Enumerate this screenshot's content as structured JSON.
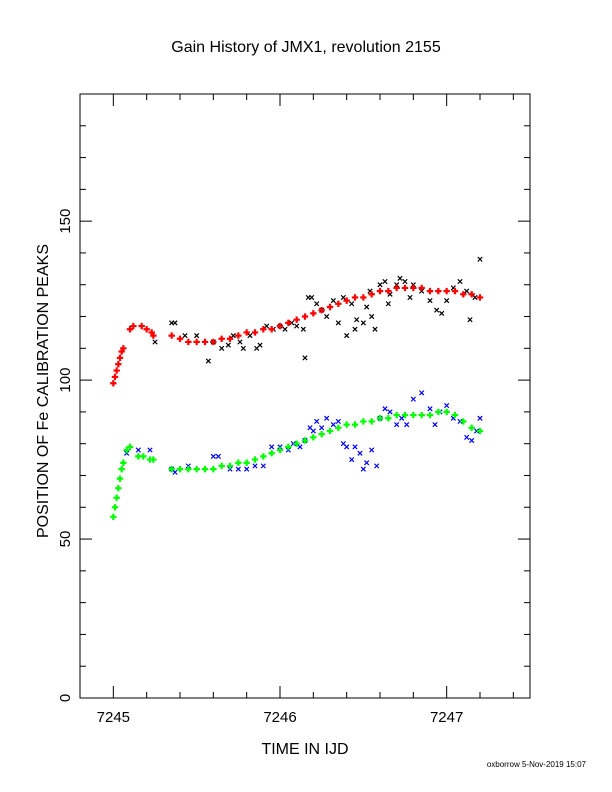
{
  "chart_data": {
    "type": "scatter",
    "title": "Gain History of JMX1, revolution 2155",
    "xlabel": "TIME IN IJD",
    "ylabel": "POSITION OF Fe CALIBRATION PEAKS",
    "xlim": [
      7244.8,
      7247.5
    ],
    "ylim": [
      0,
      190
    ],
    "x_major_ticks": [
      7245,
      7246,
      7247
    ],
    "y_major_ticks": [
      0,
      50,
      100,
      150
    ],
    "grid": false,
    "colors": {
      "upper_raw": "#000000",
      "upper_fit": "#ff0000",
      "lower_raw": "#0000ff",
      "lower_fit": "#00ff00"
    },
    "series": [
      {
        "role": "upper_raw",
        "marker": "x",
        "points": [
          [
            7245.25,
            112
          ],
          [
            7245.35,
            118
          ],
          [
            7245.37,
            118
          ],
          [
            7245.43,
            114
          ],
          [
            7245.5,
            114
          ],
          [
            7245.57,
            106
          ],
          [
            7245.6,
            112
          ],
          [
            7245.65,
            110
          ],
          [
            7245.69,
            111
          ],
          [
            7245.72,
            114
          ],
          [
            7245.76,
            112
          ],
          [
            7245.78,
            110
          ],
          [
            7245.82,
            114
          ],
          [
            7245.86,
            110
          ],
          [
            7245.88,
            111
          ],
          [
            7245.92,
            117
          ],
          [
            7245.96,
            116
          ],
          [
            7246.0,
            117
          ],
          [
            7246.03,
            116
          ],
          [
            7246.07,
            118
          ],
          [
            7246.1,
            117
          ],
          [
            7246.14,
            116
          ],
          [
            7246.17,
            126
          ],
          [
            7246.19,
            126
          ],
          [
            7246.22,
            124
          ],
          [
            7246.25,
            122
          ],
          [
            7246.28,
            120
          ],
          [
            7246.32,
            125
          ],
          [
            7246.35,
            118
          ],
          [
            7246.38,
            126
          ],
          [
            7246.4,
            114
          ],
          [
            7246.43,
            124
          ],
          [
            7246.46,
            119
          ],
          [
            7246.5,
            118
          ],
          [
            7246.52,
            123
          ],
          [
            7246.54,
            128
          ],
          [
            7246.57,
            116
          ],
          [
            7246.6,
            130
          ],
          [
            7246.63,
            131
          ],
          [
            7246.66,
            127
          ],
          [
            7246.7,
            130
          ],
          [
            7246.72,
            132
          ],
          [
            7246.75,
            131
          ],
          [
            7246.8,
            130
          ],
          [
            7246.85,
            128
          ],
          [
            7246.9,
            125
          ],
          [
            7246.94,
            122
          ],
          [
            7246.97,
            121
          ],
          [
            7247.0,
            125
          ],
          [
            7247.04,
            129
          ],
          [
            7247.08,
            131
          ],
          [
            7247.12,
            128
          ],
          [
            7247.14,
            119
          ],
          [
            7247.17,
            126
          ],
          [
            7247.2,
            138
          ],
          [
            7246.15,
            107
          ],
          [
            7246.45,
            116
          ],
          [
            7246.55,
            120
          ],
          [
            7246.65,
            124
          ],
          [
            7246.78,
            126
          ]
        ]
      },
      {
        "role": "upper_fit",
        "marker": "+",
        "points": [
          [
            7245.0,
            99
          ],
          [
            7245.01,
            101
          ],
          [
            7245.02,
            103
          ],
          [
            7245.03,
            105
          ],
          [
            7245.04,
            107
          ],
          [
            7245.05,
            109
          ],
          [
            7245.06,
            110
          ],
          [
            7245.1,
            116
          ],
          [
            7245.12,
            117
          ],
          [
            7245.17,
            117
          ],
          [
            7245.2,
            116
          ],
          [
            7245.23,
            115
          ],
          [
            7245.24,
            114
          ],
          [
            7245.35,
            114
          ],
          [
            7245.4,
            113
          ],
          [
            7245.45,
            112
          ],
          [
            7245.5,
            112
          ],
          [
            7245.55,
            112
          ],
          [
            7245.6,
            112
          ],
          [
            7245.65,
            113
          ],
          [
            7245.7,
            113
          ],
          [
            7245.75,
            114
          ],
          [
            7245.8,
            115
          ],
          [
            7245.85,
            115
          ],
          [
            7245.9,
            116
          ],
          [
            7245.95,
            116
          ],
          [
            7246.0,
            117
          ],
          [
            7246.05,
            118
          ],
          [
            7246.1,
            119
          ],
          [
            7246.15,
            120
          ],
          [
            7246.2,
            121
          ],
          [
            7246.25,
            122
          ],
          [
            7246.3,
            123
          ],
          [
            7246.35,
            124
          ],
          [
            7246.4,
            125
          ],
          [
            7246.45,
            126
          ],
          [
            7246.5,
            126
          ],
          [
            7246.55,
            127
          ],
          [
            7246.6,
            128
          ],
          [
            7246.65,
            128
          ],
          [
            7246.7,
            129
          ],
          [
            7246.75,
            129
          ],
          [
            7246.8,
            129
          ],
          [
            7246.85,
            129
          ],
          [
            7246.9,
            128
          ],
          [
            7246.95,
            128
          ],
          [
            7247.0,
            128
          ],
          [
            7247.05,
            128
          ],
          [
            7247.1,
            127
          ],
          [
            7247.15,
            127
          ],
          [
            7247.2,
            126
          ]
        ]
      },
      {
        "role": "lower_raw",
        "marker": "x",
        "points": [
          [
            7245.08,
            77
          ],
          [
            7245.15,
            78
          ],
          [
            7245.22,
            78
          ],
          [
            7245.35,
            72
          ],
          [
            7245.37,
            71
          ],
          [
            7245.45,
            73
          ],
          [
            7245.6,
            76
          ],
          [
            7245.63,
            76
          ],
          [
            7245.7,
            72
          ],
          [
            7245.75,
            72
          ],
          [
            7245.8,
            72
          ],
          [
            7245.85,
            73
          ],
          [
            7245.9,
            73
          ],
          [
            7245.95,
            79
          ],
          [
            7246.0,
            79
          ],
          [
            7246.05,
            78
          ],
          [
            7246.08,
            80
          ],
          [
            7246.12,
            79
          ],
          [
            7246.15,
            81
          ],
          [
            7246.18,
            85
          ],
          [
            7246.2,
            84
          ],
          [
            7246.22,
            87
          ],
          [
            7246.25,
            85
          ],
          [
            7246.28,
            88
          ],
          [
            7246.32,
            86
          ],
          [
            7246.35,
            87
          ],
          [
            7246.38,
            80
          ],
          [
            7246.4,
            79
          ],
          [
            7246.43,
            75
          ],
          [
            7246.45,
            79
          ],
          [
            7246.48,
            77
          ],
          [
            7246.5,
            72
          ],
          [
            7246.52,
            74
          ],
          [
            7246.55,
            78
          ],
          [
            7246.58,
            73
          ],
          [
            7246.6,
            88
          ],
          [
            7246.63,
            91
          ],
          [
            7246.66,
            90
          ],
          [
            7246.7,
            86
          ],
          [
            7246.73,
            88
          ],
          [
            7246.76,
            86
          ],
          [
            7246.8,
            94
          ],
          [
            7246.85,
            96
          ],
          [
            7246.9,
            91
          ],
          [
            7246.93,
            86
          ],
          [
            7246.96,
            90
          ],
          [
            7247.0,
            92
          ],
          [
            7247.04,
            88
          ],
          [
            7247.08,
            87
          ],
          [
            7247.12,
            82
          ],
          [
            7247.15,
            81
          ],
          [
            7247.18,
            84
          ],
          [
            7247.2,
            88
          ]
        ]
      },
      {
        "role": "lower_fit",
        "marker": "+",
        "points": [
          [
            7245.0,
            57
          ],
          [
            7245.01,
            60
          ],
          [
            7245.02,
            63
          ],
          [
            7245.03,
            66
          ],
          [
            7245.04,
            69
          ],
          [
            7245.05,
            72
          ],
          [
            7245.06,
            74
          ],
          [
            7245.08,
            78
          ],
          [
            7245.1,
            79
          ],
          [
            7245.15,
            76
          ],
          [
            7245.18,
            76
          ],
          [
            7245.22,
            75
          ],
          [
            7245.24,
            75
          ],
          [
            7245.35,
            72
          ],
          [
            7245.4,
            72
          ],
          [
            7245.45,
            72
          ],
          [
            7245.5,
            72
          ],
          [
            7245.55,
            72
          ],
          [
            7245.6,
            72
          ],
          [
            7245.65,
            73
          ],
          [
            7245.7,
            73
          ],
          [
            7245.75,
            74
          ],
          [
            7245.8,
            74
          ],
          [
            7245.85,
            75
          ],
          [
            7245.9,
            76
          ],
          [
            7245.95,
            77
          ],
          [
            7246.0,
            78
          ],
          [
            7246.05,
            79
          ],
          [
            7246.1,
            80
          ],
          [
            7246.15,
            81
          ],
          [
            7246.2,
            82
          ],
          [
            7246.25,
            83
          ],
          [
            7246.3,
            84
          ],
          [
            7246.35,
            85
          ],
          [
            7246.4,
            86
          ],
          [
            7246.45,
            86
          ],
          [
            7246.5,
            87
          ],
          [
            7246.55,
            87
          ],
          [
            7246.6,
            88
          ],
          [
            7246.65,
            88
          ],
          [
            7246.7,
            89
          ],
          [
            7246.75,
            89
          ],
          [
            7246.8,
            89
          ],
          [
            7246.85,
            89
          ],
          [
            7246.9,
            89
          ],
          [
            7246.95,
            90
          ],
          [
            7247.0,
            90
          ],
          [
            7247.05,
            89
          ],
          [
            7247.1,
            87
          ],
          [
            7247.15,
            85
          ],
          [
            7247.2,
            84
          ]
        ]
      }
    ]
  },
  "footer": "oxborrow  5-Nov-2019 15:07"
}
